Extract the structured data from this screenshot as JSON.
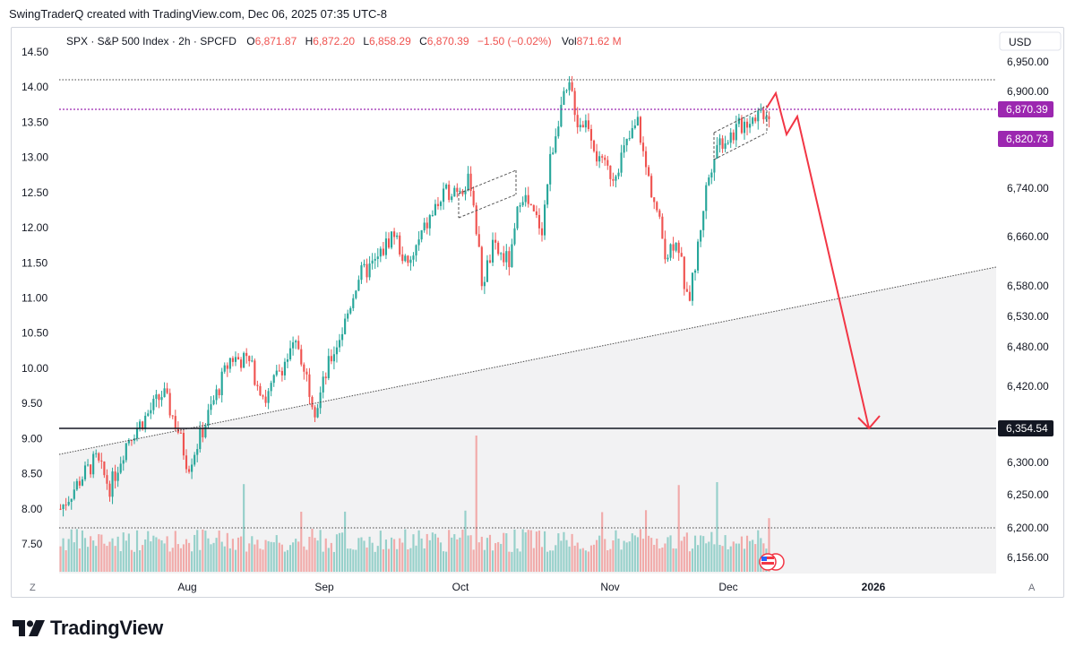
{
  "header": {
    "text": "SwingTraderQ created with TradingView.com, Dec 06, 2025 07:35 UTC-8"
  },
  "legend": {
    "symbol": "SPX · S&P 500 Index · 2h · SPCFD",
    "open_label": "O",
    "open": "6,871.87",
    "high_label": "H",
    "high": "6,872.20",
    "low_label": "L",
    "low": "6,858.29",
    "close_label": "C",
    "close": "6,870.39",
    "change": "−1.50 (−0.02%)",
    "vol_label": "Vol",
    "vol": "871.62 M"
  },
  "currency": "USD",
  "corner_left": "Z",
  "corner_right": "A",
  "brand": {
    "name": "TradingView"
  },
  "colors": {
    "up": "#26a69a",
    "down": "#ef5350",
    "purple": "#9c27b0",
    "arrow": "#f23645",
    "level": "#131722"
  },
  "chart_data": {
    "type": "candlestick",
    "title": "SPX · S&P 500 Index · 2h · SPCFD",
    "x_ticks": [
      "Aug",
      "Sep",
      "Oct",
      "Nov",
      "Dec",
      "2026"
    ],
    "right_axis_labels": [
      "6,950.00",
      "6,900.00",
      "6,740.00",
      "6,660.00",
      "6,580.00",
      "6,530.00",
      "6,480.00",
      "6,420.00",
      "6,300.00",
      "6,250.00",
      "6,200.00",
      "6,156.00"
    ],
    "left_axis_labels": [
      "14.50",
      "14.00",
      "13.50",
      "13.00",
      "12.50",
      "12.00",
      "11.50",
      "11.00",
      "10.50",
      "10.00",
      "9.50",
      "9.00",
      "8.50",
      "8.00",
      "7.50"
    ],
    "left_axis_range": [
      7.0,
      14.7
    ],
    "price_path": [
      {
        "t": 0.0,
        "p": 8.0
      },
      {
        "t": 0.03,
        "p": 8.45
      },
      {
        "t": 0.05,
        "p": 8.7
      },
      {
        "t": 0.07,
        "p": 8.3
      },
      {
        "t": 0.095,
        "p": 9.0
      },
      {
        "t": 0.12,
        "p": 9.3
      },
      {
        "t": 0.145,
        "p": 9.65
      },
      {
        "t": 0.165,
        "p": 9.15
      },
      {
        "t": 0.18,
        "p": 8.6
      },
      {
        "t": 0.2,
        "p": 9.1
      },
      {
        "t": 0.215,
        "p": 9.5
      },
      {
        "t": 0.24,
        "p": 10.15
      },
      {
        "t": 0.265,
        "p": 10.1
      },
      {
        "t": 0.29,
        "p": 9.55
      },
      {
        "t": 0.31,
        "p": 10.0
      },
      {
        "t": 0.335,
        "p": 10.35
      },
      {
        "t": 0.36,
        "p": 9.4
      },
      {
        "t": 0.38,
        "p": 10.1
      },
      {
        "t": 0.4,
        "p": 10.6
      },
      {
        "t": 0.42,
        "p": 11.3
      },
      {
        "t": 0.445,
        "p": 11.5
      },
      {
        "t": 0.47,
        "p": 11.95
      },
      {
        "t": 0.49,
        "p": 11.4
      },
      {
        "t": 0.51,
        "p": 11.9
      },
      {
        "t": 0.53,
        "p": 12.3
      },
      {
        "t": 0.55,
        "p": 12.55
      },
      {
        "t": 0.58,
        "p": 12.65
      },
      {
        "t": 0.595,
        "p": 11.2
      },
      {
        "t": 0.61,
        "p": 11.7
      },
      {
        "t": 0.635,
        "p": 11.5
      },
      {
        "t": 0.65,
        "p": 12.55
      },
      {
        "t": 0.665,
        "p": 12.2
      },
      {
        "t": 0.68,
        "p": 12.0
      },
      {
        "t": 0.69,
        "p": 12.9
      },
      {
        "t": 0.705,
        "p": 13.7
      },
      {
        "t": 0.72,
        "p": 14.0
      },
      {
        "t": 0.73,
        "p": 13.5
      },
      {
        "t": 0.745,
        "p": 13.5
      },
      {
        "t": 0.76,
        "p": 12.9
      },
      {
        "t": 0.78,
        "p": 12.75
      },
      {
        "t": 0.8,
        "p": 13.2
      },
      {
        "t": 0.815,
        "p": 13.5
      },
      {
        "t": 0.825,
        "p": 12.9
      },
      {
        "t": 0.84,
        "p": 12.3
      },
      {
        "t": 0.855,
        "p": 11.6
      },
      {
        "t": 0.87,
        "p": 11.9
      },
      {
        "t": 0.885,
        "p": 10.9
      },
      {
        "t": 0.895,
        "p": 11.4
      },
      {
        "t": 0.91,
        "p": 12.5
      },
      {
        "t": 0.925,
        "p": 13.2
      },
      {
        "t": 0.945,
        "p": 13.3
      },
      {
        "t": 0.965,
        "p": 13.5
      },
      {
        "t": 0.985,
        "p": 13.65
      },
      {
        "t": 1.0,
        "p": 13.65
      }
    ],
    "levels": [
      {
        "name": "current-close-level",
        "value": "6,870.39",
        "style": "dotted",
        "color": "#9c27b0"
      },
      {
        "name": "upper-level",
        "value": "6,820.73",
        "style": "label",
        "color": "#9c27b0"
      },
      {
        "name": "support-level",
        "value": "6,354.54",
        "style": "solid",
        "color": "#131722"
      }
    ],
    "annotations": [
      {
        "name": "trendline",
        "note": "rising dotted trendline from early Aug low through Nov low, with grey shaded zone below"
      },
      {
        "name": "forecast-arrow",
        "note": "red projected path from current high, small bounce, then decline to the 6,354.54 level in late Dec"
      },
      {
        "name": "channel-oct",
        "note": "small rising channel at early Oct"
      },
      {
        "name": "channel-dec",
        "note": "small rising channel at early Dec"
      }
    ]
  }
}
